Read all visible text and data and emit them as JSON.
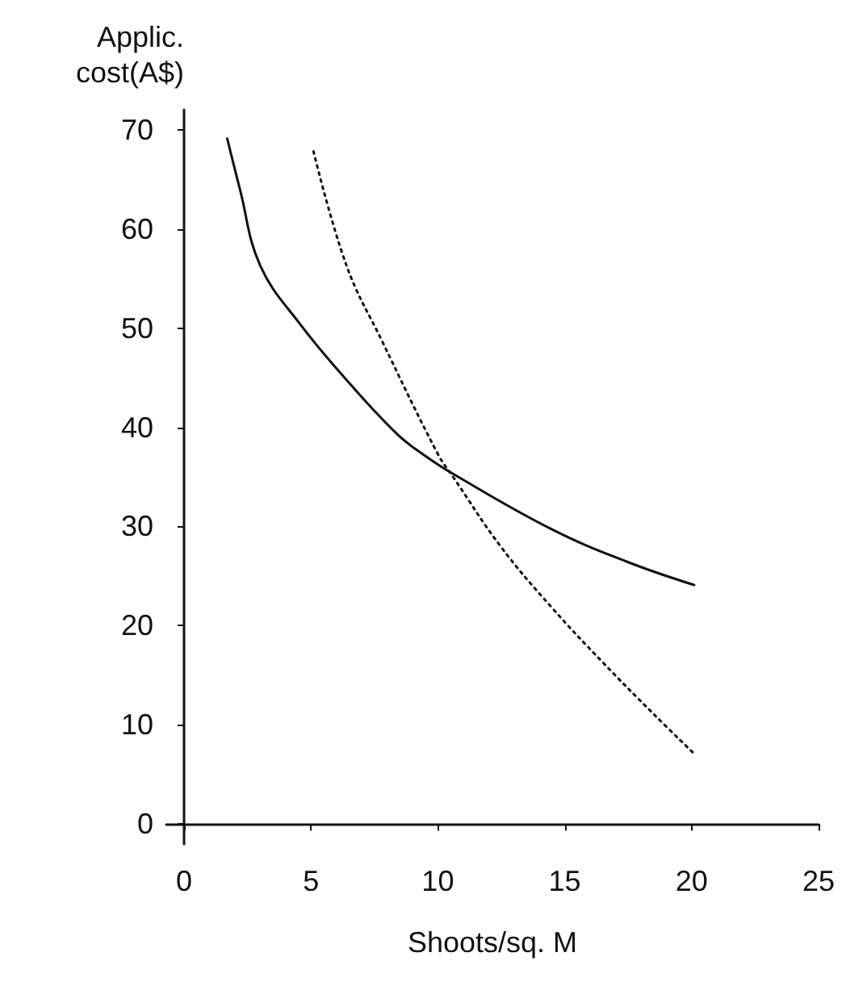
{
  "chart_data": {
    "type": "line",
    "xlabel": "Shoots/sq. M",
    "ylabel": "Applic.\ncost(A$)",
    "xlim": [
      -0.7,
      25
    ],
    "ylim": [
      -2,
      72
    ],
    "xticks": [
      0,
      5,
      10,
      15,
      20,
      25
    ],
    "yticks": [
      0,
      10,
      20,
      30,
      40,
      50,
      60,
      70
    ],
    "grid": false,
    "marker": "none",
    "series": [
      {
        "color": "#111111",
        "line_style": "solid",
        "x": [
          1.7,
          2.2,
          3.0,
          4.6,
          6.6,
          8.4,
          9.4,
          10.6,
          14.5,
          17.5,
          20.1
        ],
        "values": [
          69.1,
          64.0,
          56.3,
          50.3,
          44.2,
          39.3,
          37.3,
          35.3,
          29.7,
          26.4,
          24.1
        ]
      },
      {
        "color": "#111111",
        "line_style": "dotted",
        "x": [
          5.1,
          6.4,
          7.8,
          10.0,
          10.6,
          12.5,
          14.5,
          16.5,
          18.5,
          20.1
        ],
        "values": [
          67.8,
          56.3,
          48.7,
          37.3,
          35.0,
          27.9,
          21.8,
          16.3,
          11.1,
          7.1
        ]
      }
    ]
  }
}
